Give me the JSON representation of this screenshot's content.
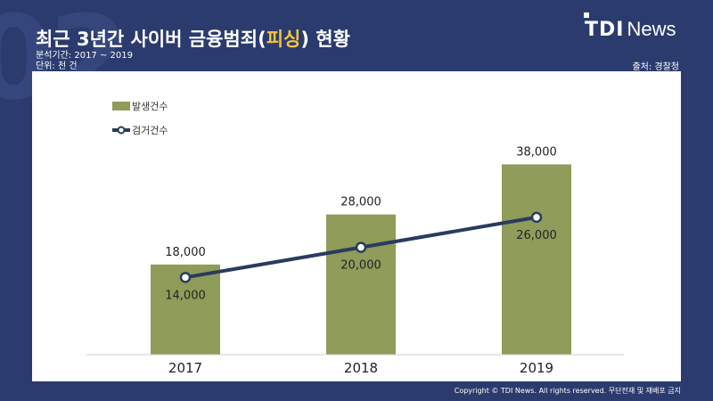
{
  "title": {
    "pre": "최근 3년간 사이버 금융범죄",
    "paren_open": "(",
    "highlight": "피싱",
    "paren_close": ")",
    "post": " 현황"
  },
  "meta": {
    "period": "분석기간: 2017 ~ 2019",
    "unit": "단위: 천 건"
  },
  "source": "출처: 경찰청",
  "logo": {
    "tdi": "TDI",
    "news": "News"
  },
  "footer": "Copyright © TDI News. All rights reserved. 무단전재 및 재배포 금지",
  "chart_data": {
    "type": "bar",
    "categories": [
      "2017",
      "2018",
      "2019"
    ],
    "series": [
      {
        "name": "발생건수",
        "type": "bar",
        "values": [
          18000,
          28000,
          38000
        ],
        "labels": [
          "18,000",
          "28,000",
          "38,000"
        ],
        "color": "#8f9c5a"
      },
      {
        "name": "검거건수",
        "type": "line",
        "values": [
          14000,
          20000,
          26000
        ],
        "labels": [
          "14,000",
          "20,000",
          "26,000"
        ],
        "color": "#2b3b5e"
      }
    ],
    "ylim": [
      0,
      40000
    ],
    "grid": false,
    "legend": "top-left"
  },
  "colors": {
    "background": "#2b3b6e",
    "bar": "#8f9c5a",
    "line": "#2b3b5e",
    "highlight": "#f3c43c"
  }
}
